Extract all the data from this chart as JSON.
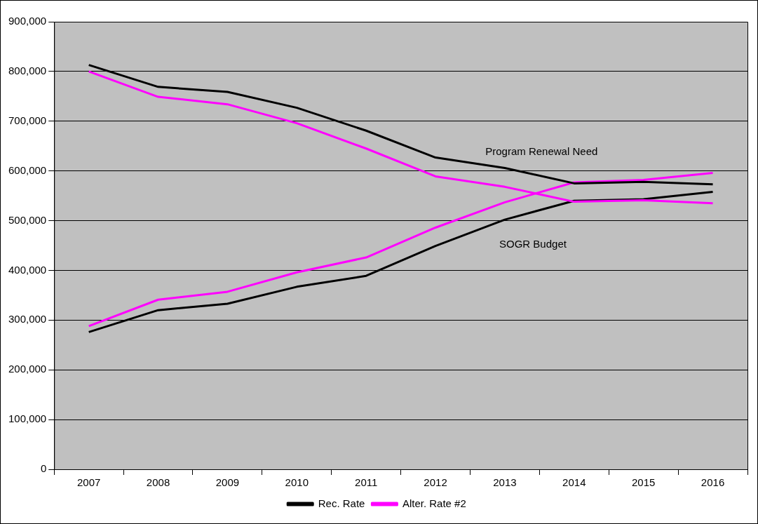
{
  "chart_data": {
    "type": "line",
    "categories": [
      "2007",
      "2008",
      "2009",
      "2010",
      "2011",
      "2012",
      "2013",
      "2014",
      "2015",
      "2016"
    ],
    "series": [
      {
        "name": "Rec. Rate",
        "color": "#000000",
        "values": [
          813000,
          769000,
          759000,
          727000,
          681000,
          627000,
          606000,
          575000,
          578000,
          573000
        ]
      },
      {
        "name": "Alter. Rate #2",
        "color": "#ff00ff",
        "values": [
          800000,
          749000,
          734000,
          696000,
          645000,
          589000,
          568000,
          538000,
          541000,
          535000
        ]
      },
      {
        "color": "#000000",
        "values": [
          276000,
          320000,
          333000,
          367000,
          389000,
          449000,
          502000,
          540000,
          543000,
          558000
        ]
      },
      {
        "color": "#ff00ff",
        "values": [
          288000,
          341000,
          357000,
          396000,
          426000,
          486000,
          537000,
          577000,
          582000,
          596000
        ]
      }
    ],
    "ylim": [
      0,
      900000
    ],
    "yticks": [
      0,
      {
        "value": 100000,
        "label": "100,000"
      },
      {
        "value": 200000,
        "label": "200,000"
      },
      {
        "value": 300000,
        "label": "300,000"
      },
      {
        "value": 400000,
        "label": "400,000"
      },
      {
        "value": 500000,
        "label": "500,000"
      },
      {
        "value": 600000,
        "label": "600,000"
      },
      {
        "value": 700000,
        "label": "700,000"
      },
      {
        "value": 800000,
        "label": "800,000"
      },
      {
        "value": 900000,
        "label": "900,000"
      }
    ],
    "grid": "y",
    "legend": "bottom",
    "marker": "none",
    "line_style": "solid",
    "annotations": [
      "Program Renewal Need",
      "SOGR Budget"
    ]
  }
}
